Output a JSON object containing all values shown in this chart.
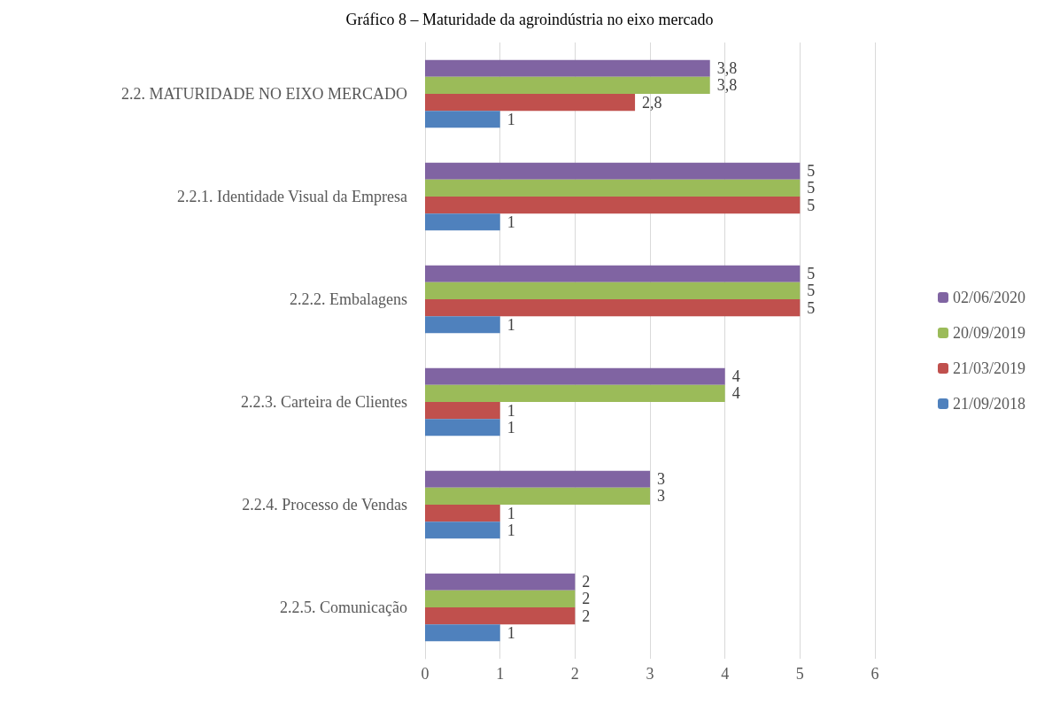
{
  "chart_data": {
    "type": "bar",
    "orientation": "horizontal",
    "title": "Gráfico 8 – Maturidade da agroindústria no eixo mercado",
    "categories": [
      "2.2. MATURIDADE NO EIXO MERCADO",
      "2.2.1. Identidade Visual da Empresa",
      "2.2.2. Embalagens",
      "2.2.3. Carteira de Clientes",
      "2.2.4. Processo de Vendas",
      "2.2.5. Comunicação"
    ],
    "series": [
      {
        "name": "02/06/2020",
        "color": "#8064a2",
        "values": [
          3.8,
          5,
          5,
          4,
          3,
          2
        ],
        "value_labels": [
          "3,8",
          "5",
          "5",
          "4",
          "3",
          "2"
        ]
      },
      {
        "name": "20/09/2019",
        "color": "#9bbb59",
        "values": [
          3.8,
          5,
          5,
          4,
          3,
          2
        ],
        "value_labels": [
          "3,8",
          "5",
          "5",
          "4",
          "3",
          "2"
        ]
      },
      {
        "name": "21/03/2019",
        "color": "#c0504d",
        "values": [
          2.8,
          5,
          5,
          1,
          1,
          2
        ],
        "value_labels": [
          "2,8",
          "5",
          "5",
          "1",
          "1",
          "2"
        ]
      },
      {
        "name": "21/09/2018",
        "color": "#4f81bd",
        "values": [
          1,
          1,
          1,
          1,
          1,
          1
        ],
        "value_labels": [
          "1",
          "1",
          "1",
          "1",
          "1",
          "1"
        ]
      }
    ],
    "xlim": [
      0,
      6
    ],
    "xticks": [
      0,
      1,
      2,
      3,
      4,
      5,
      6
    ],
    "grid": "x",
    "legend": "right"
  }
}
